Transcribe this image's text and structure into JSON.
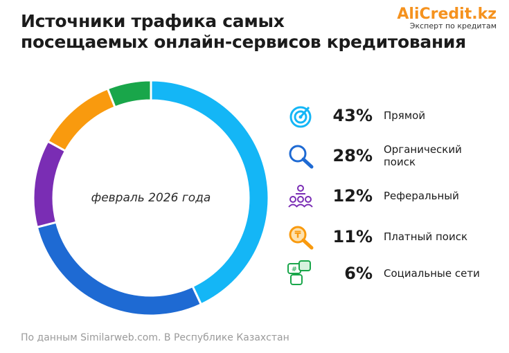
{
  "brand": {
    "name": "AliCredit.kz",
    "tagline": "Эксперт по кредитам"
  },
  "chart_data": {
    "type": "donut",
    "title": [
      "Источники трафика самых",
      "посещаемых онлайн-сервисов кредитования"
    ],
    "center_label": "февраль 2026 года",
    "categories": [
      "Прямой",
      "Органический поиск",
      "Реферальный",
      "Платный поиск",
      "Социальные сети"
    ],
    "values": [
      43,
      28,
      12,
      11,
      6
    ],
    "value_labels": [
      "43%",
      "28%",
      "12%",
      "11%",
      "6%"
    ],
    "colors": [
      "#14b6f6",
      "#1e6ad3",
      "#7a2db4",
      "#f99a0e",
      "#19a64a"
    ],
    "source": "По данным Similarweb.com. В Республике Казахстан"
  }
}
